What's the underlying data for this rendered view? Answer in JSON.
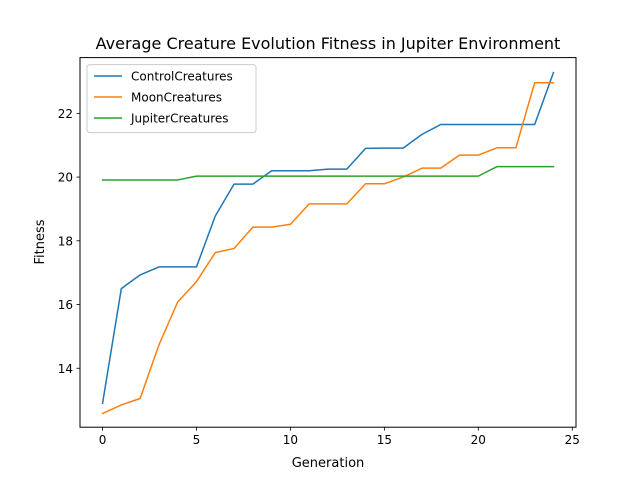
{
  "chart_data": {
    "type": "line",
    "title": "Average Creature Evolution Fitness in Jupiter Environment",
    "xlabel": "Generation",
    "ylabel": "Fitness",
    "xlim": [
      -1.2,
      25.2
    ],
    "ylim": [
      12.15,
      23.75
    ],
    "xticks": [
      0,
      5,
      10,
      15,
      20,
      25
    ],
    "yticks": [
      14,
      16,
      18,
      20,
      22
    ],
    "grid": false,
    "legend_position": "top-left",
    "x": [
      0,
      1,
      2,
      3,
      4,
      5,
      6,
      7,
      8,
      9,
      10,
      11,
      12,
      13,
      14,
      15,
      16,
      17,
      18,
      19,
      20,
      21,
      22,
      23,
      24
    ],
    "series": [
      {
        "name": "ControlCreatures",
        "color": "#1f77b4",
        "values": [
          12.9,
          16.5,
          16.93,
          17.18,
          17.18,
          17.18,
          18.78,
          19.78,
          19.78,
          20.2,
          20.2,
          20.2,
          20.25,
          20.25,
          20.9,
          20.91,
          20.91,
          21.34,
          21.65,
          21.65,
          21.65,
          21.65,
          21.65,
          21.65,
          23.28
        ]
      },
      {
        "name": "MoonCreatures",
        "color": "#ff7f0e",
        "values": [
          12.58,
          12.85,
          13.05,
          14.73,
          16.08,
          16.72,
          17.63,
          17.76,
          18.43,
          18.43,
          18.52,
          19.16,
          19.16,
          19.16,
          19.79,
          19.79,
          20.0,
          20.28,
          20.28,
          20.69,
          20.69,
          20.92,
          20.92,
          22.96,
          22.96
        ]
      },
      {
        "name": "JupiterCreatures",
        "color": "#2ca02c",
        "values": [
          19.91,
          19.91,
          19.91,
          19.91,
          19.91,
          20.03,
          20.03,
          20.03,
          20.03,
          20.03,
          20.03,
          20.03,
          20.03,
          20.03,
          20.03,
          20.03,
          20.03,
          20.03,
          20.03,
          20.03,
          20.03,
          20.33,
          20.33,
          20.33,
          20.33
        ]
      }
    ]
  }
}
